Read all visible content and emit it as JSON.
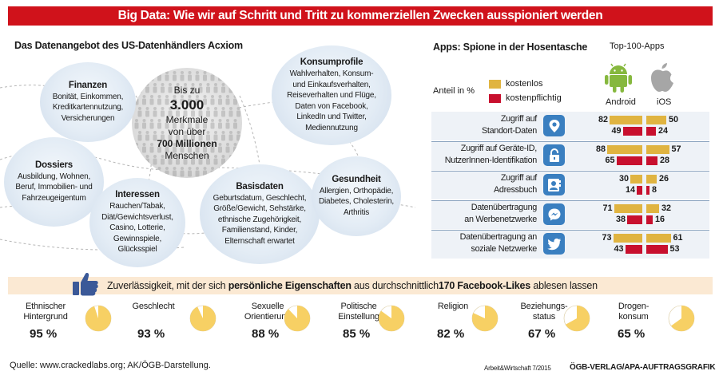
{
  "header": {
    "title": "Big Data: Wie wir auf Schritt und Tritt zu kommerziellen Zwecken ausspioniert werden"
  },
  "acxiom": {
    "title": "Das Datenangebot des US-Datenhändlers Acxiom",
    "center": {
      "line1": "Bis zu",
      "big": "3.000",
      "line2": "Merkmale",
      "line3": "von über",
      "bold": "700 Millionen",
      "line4": "Menschen"
    },
    "bubbles": [
      {
        "id": "finanzen",
        "title": "Finanzen",
        "text": "Bonität, Einkommen,\nKreditkartennutzung,\nVersicherungen"
      },
      {
        "id": "konsumprofile",
        "title": "Konsumprofile",
        "text": "Wahlverhalten, Konsum-\nund Einkaufsverhalten,\nReiseverhalten und Flüge,\nDaten von Facebook,\nLinkedIn und Twitter,\nMediennutzung"
      },
      {
        "id": "dossiers",
        "title": "Dossiers",
        "text": "Ausbildung, Wohnen,\nBeruf, Immobilien- und\nFahrzeugeigentum"
      },
      {
        "id": "interessen",
        "title": "Interessen",
        "text": "Rauchen/Tabak,\nDiät/Gewichtsverlust,\nCasino, Lotterie,\nGewinnspiele,\nGlücksspiel"
      },
      {
        "id": "basisdaten",
        "title": "Basisdaten",
        "text": "Geburtsdatum, Geschlecht,\nGröße/Gewicht, Sehstärke,\nethnische Zugehörigkeit,\nFamilienstand, Kinder,\nElternschaft erwartet"
      },
      {
        "id": "gesundheit",
        "title": "Gesundheit",
        "text": "Allergien, Orthopädie,\nDiabetes, Cholesterin,\nArthritis"
      }
    ]
  },
  "apps": {
    "title": "Apps: Spione in der Hosentasche",
    "subtitle": "Top-100-Apps",
    "unit_label": "Anteil in %",
    "platform_android": "Android",
    "platform_ios": "iOS"
  },
  "chart_data": {
    "type": "bar",
    "title": "Apps: Spione in der Hosentasche",
    "ylabel": "Anteil in %",
    "categories": [
      "Zugriff auf Standort-Daten",
      "Zugriff auf Geräte-ID, NutzerInnen-Identifikation",
      "Zugriff auf Adressbuch",
      "Datenübertragung an Werbenetzwerke",
      "Datenübertragung an soziale Netzwerke"
    ],
    "category_lines": [
      [
        "Zugriff auf",
        "Standort-Daten"
      ],
      [
        "Zugriff auf Geräte-ID,",
        "NutzerInnen-Identifikation"
      ],
      [
        "Zugriff auf",
        "Adressbuch"
      ],
      [
        "Datenübertragung",
        "an Werbenetzwerke"
      ],
      [
        "Datenübertragung an",
        "soziale Netzwerke"
      ]
    ],
    "icons": [
      "location-pin-icon",
      "lock-icon",
      "contact-book-icon",
      "messenger-icon",
      "twitter-bird-icon"
    ],
    "colors": {
      "kostenlos": "#e0b441",
      "kostenpflichtig": "#c8102e",
      "icon_bg": "#3a7fc0"
    },
    "series": [
      {
        "name": "kostenlos",
        "platform": "Android",
        "values": [
          82,
          88,
          30,
          71,
          73
        ]
      },
      {
        "name": "kostenpflichtig",
        "platform": "Android",
        "values": [
          49,
          65,
          14,
          38,
          43
        ]
      },
      {
        "name": "kostenlos",
        "platform": "iOS",
        "values": [
          50,
          57,
          26,
          32,
          61
        ]
      },
      {
        "name": "kostenpflichtig",
        "platform": "iOS",
        "values": [
          24,
          28,
          8,
          16,
          53
        ]
      }
    ],
    "legend": [
      "kostenlos",
      "kostenpflichtig"
    ],
    "ylim": [
      0,
      100
    ]
  },
  "likes": {
    "text_pre": "Zuverlässigkeit, mit der sich ",
    "text_bold1": "persönliche Eigenschaften",
    "text_mid": " aus durchschnittlich",
    "text_bold2": "170 Facebook-Likes",
    "text_post": " ablesen lassen",
    "pie_color": "#f7d064",
    "traits": [
      {
        "label": "Ethnischer\nHintergrund",
        "value": 95,
        "display": "95 %"
      },
      {
        "label": "Geschlecht",
        "value": 93,
        "display": "93 %"
      },
      {
        "label": "Sexuelle\nOrientierung",
        "value": 88,
        "display": "88 %"
      },
      {
        "label": "Politische\nEinstellung",
        "value": 85,
        "display": "85 %"
      },
      {
        "label": "Religion",
        "value": 82,
        "display": "82 %"
      },
      {
        "label": "Beziehungs-\nstatus",
        "value": 67,
        "display": "67 %"
      },
      {
        "label": "Drogen-\nkonsum",
        "value": 65,
        "display": "65 %"
      }
    ]
  },
  "footer": {
    "source": "Quelle: www.crackedlabs.org; AK/ÖGB-Darstellung.",
    "issue": "Arbeit&Wirtschaft 7/2015",
    "brand": "ÖGB-VERLAG/APA-AUFTRAGSGRAFIK"
  }
}
